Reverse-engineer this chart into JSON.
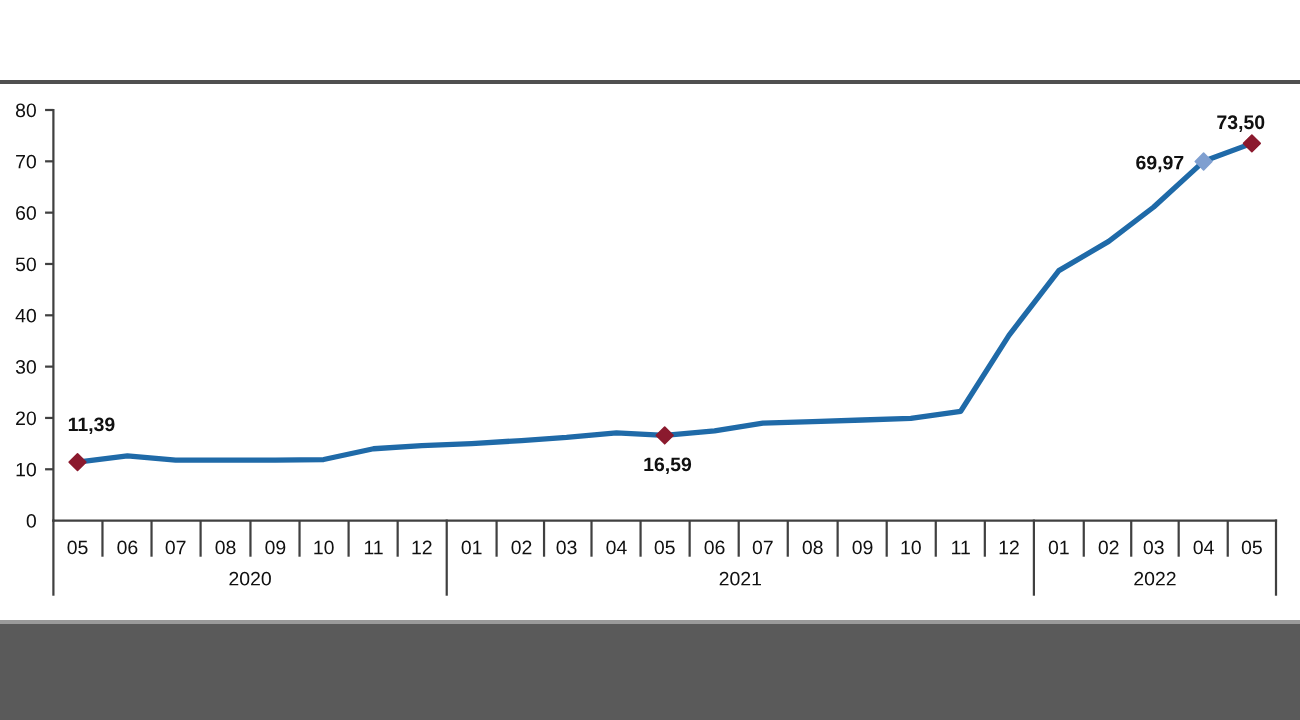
{
  "chart_data": {
    "type": "line",
    "x": [
      "2020-05",
      "2020-06",
      "2020-07",
      "2020-08",
      "2020-09",
      "2020-10",
      "2020-11",
      "2020-12",
      "2021-01",
      "2021-02",
      "2021-03",
      "2021-04",
      "2021-05",
      "2021-06",
      "2021-07",
      "2021-08",
      "2021-09",
      "2021-10",
      "2021-11",
      "2021-12",
      "2022-01",
      "2022-02",
      "2022-03",
      "2022-04",
      "2022-05"
    ],
    "xlim": [
      "2020-04-16",
      "2022-05-16"
    ],
    "xticks": [
      {
        "value": "2020-05",
        "label": "05"
      },
      {
        "value": "2020-06",
        "label": "06"
      },
      {
        "value": "2020-07",
        "label": "07"
      },
      {
        "value": "2020-08",
        "label": "08"
      },
      {
        "value": "2020-09",
        "label": "09"
      },
      {
        "value": "2020-10",
        "label": "10"
      },
      {
        "value": "2020-11",
        "label": "11"
      },
      {
        "value": "2020-12",
        "label": "12"
      },
      {
        "value": "2021-01",
        "label": "01"
      },
      {
        "value": "2021-02",
        "label": "02"
      },
      {
        "value": "2021-03",
        "label": "03"
      },
      {
        "value": "2021-04",
        "label": "04"
      },
      {
        "value": "2021-05",
        "label": "05"
      },
      {
        "value": "2021-06",
        "label": "06"
      },
      {
        "value": "2021-07",
        "label": "07"
      },
      {
        "value": "2021-08",
        "label": "08"
      },
      {
        "value": "2021-09",
        "label": "09"
      },
      {
        "value": "2021-10",
        "label": "10"
      },
      {
        "value": "2021-11",
        "label": "11"
      },
      {
        "value": "2021-12",
        "label": "12"
      },
      {
        "value": "2022-01",
        "label": "01"
      },
      {
        "value": "2022-02",
        "label": "02"
      },
      {
        "value": "2022-03",
        "label": "03"
      },
      {
        "value": "2022-04",
        "label": "04"
      },
      {
        "value": "2022-05",
        "label": "05"
      }
    ],
    "ylim": [
      0,
      80
    ],
    "yticks": [
      0,
      10,
      20,
      30,
      40,
      50,
      60,
      70,
      80
    ],
    "grid": false,
    "annotations": [
      "2020",
      "2021",
      "2022"
    ],
    "series": [
      {
        "color": "#1f6aa8",
        "marker": "none",
        "values": [
          11.4,
          12.6,
          11.8,
          11.8,
          11.8,
          11.9,
          14.0,
          14.6,
          15.0,
          15.6,
          16.2,
          17.1,
          16.6,
          17.5,
          19.0,
          19.3,
          19.6,
          19.9,
          21.3,
          36.1,
          48.7,
          54.4,
          61.1,
          70.0,
          73.5
        ]
      },
      {
        "type": "scatter",
        "marker": "diamond",
        "x": [
          "2020-05",
          "2021-05",
          "2022-04",
          "2022-05"
        ],
        "values": [
          11.39,
          16.59,
          69.97,
          73.5
        ],
        "colors": [
          "#8b1a2e",
          "#8b1a2e",
          "#7f9fd0",
          "#8b1a2e"
        ],
        "value_labels": [
          "11,39",
          "16,59",
          "69,97",
          "73,50"
        ]
      }
    ]
  }
}
